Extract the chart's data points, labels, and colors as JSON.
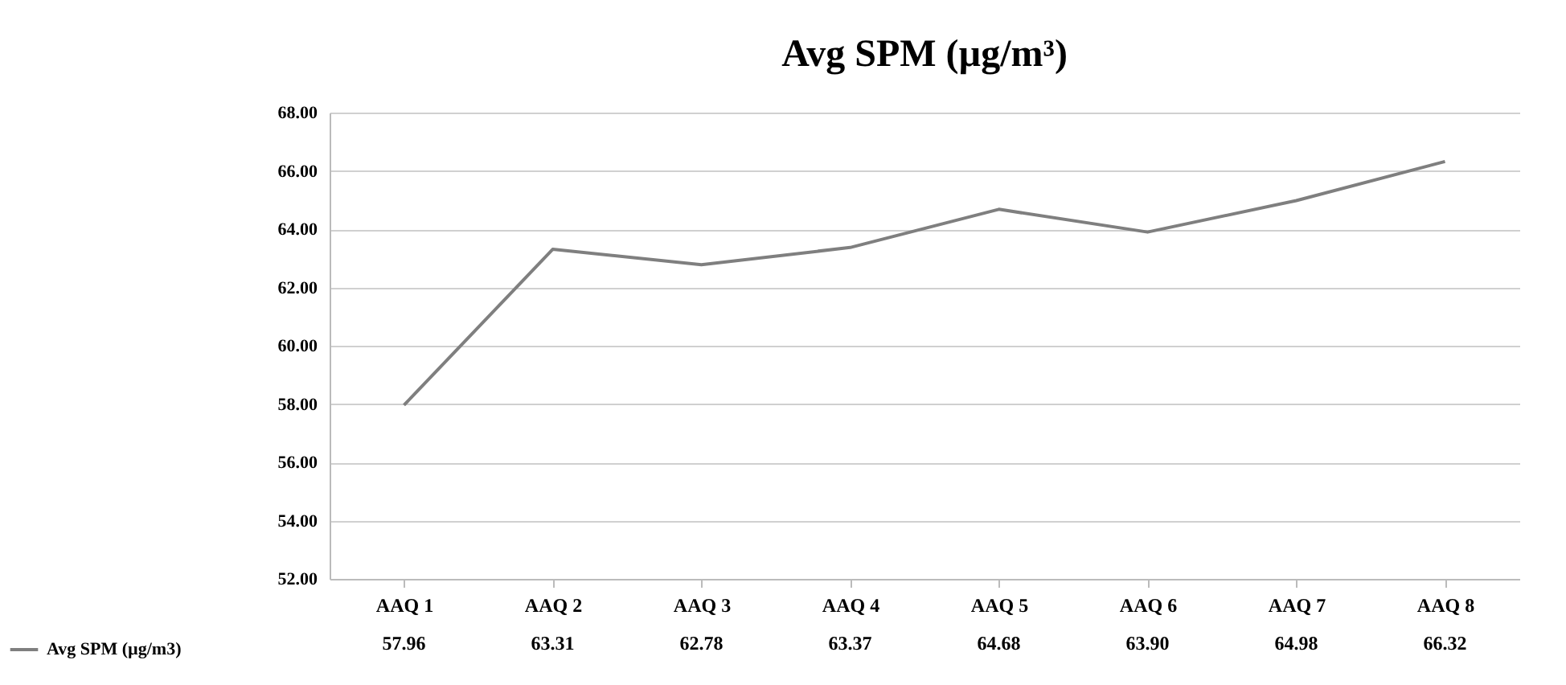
{
  "chart_data": {
    "type": "line",
    "title": "Avg SPM (µg/m³)",
    "categories": [
      "AAQ 1",
      "AAQ 2",
      "AAQ 3",
      "AAQ 4",
      "AAQ 5",
      "AAQ 6",
      "AAQ 7",
      "AAQ 8"
    ],
    "series": [
      {
        "name": "Avg SPM (µg/m3)",
        "color": "#7f7f7f",
        "values": [
          57.96,
          63.31,
          62.78,
          63.37,
          64.68,
          63.9,
          64.98,
          66.32
        ],
        "value_labels": [
          "57.96",
          "63.31",
          "62.78",
          "63.37",
          "64.68",
          "63.90",
          "64.98",
          "66.32"
        ]
      }
    ],
    "ylim": [
      52,
      68
    ],
    "yticks": [
      {
        "value": 52,
        "label": "52.00"
      },
      {
        "value": 54,
        "label": "54.00"
      },
      {
        "value": 56,
        "label": "56.00"
      },
      {
        "value": 58,
        "label": "58.00"
      },
      {
        "value": 60,
        "label": "60.00"
      },
      {
        "value": 62,
        "label": "62.00"
      },
      {
        "value": 64,
        "label": "64.00"
      },
      {
        "value": 66,
        "label": "66.00"
      },
      {
        "value": 68,
        "label": "68.00"
      }
    ],
    "grid": "y",
    "legend": "bottom left",
    "marker": "none",
    "line_style": "solid"
  }
}
